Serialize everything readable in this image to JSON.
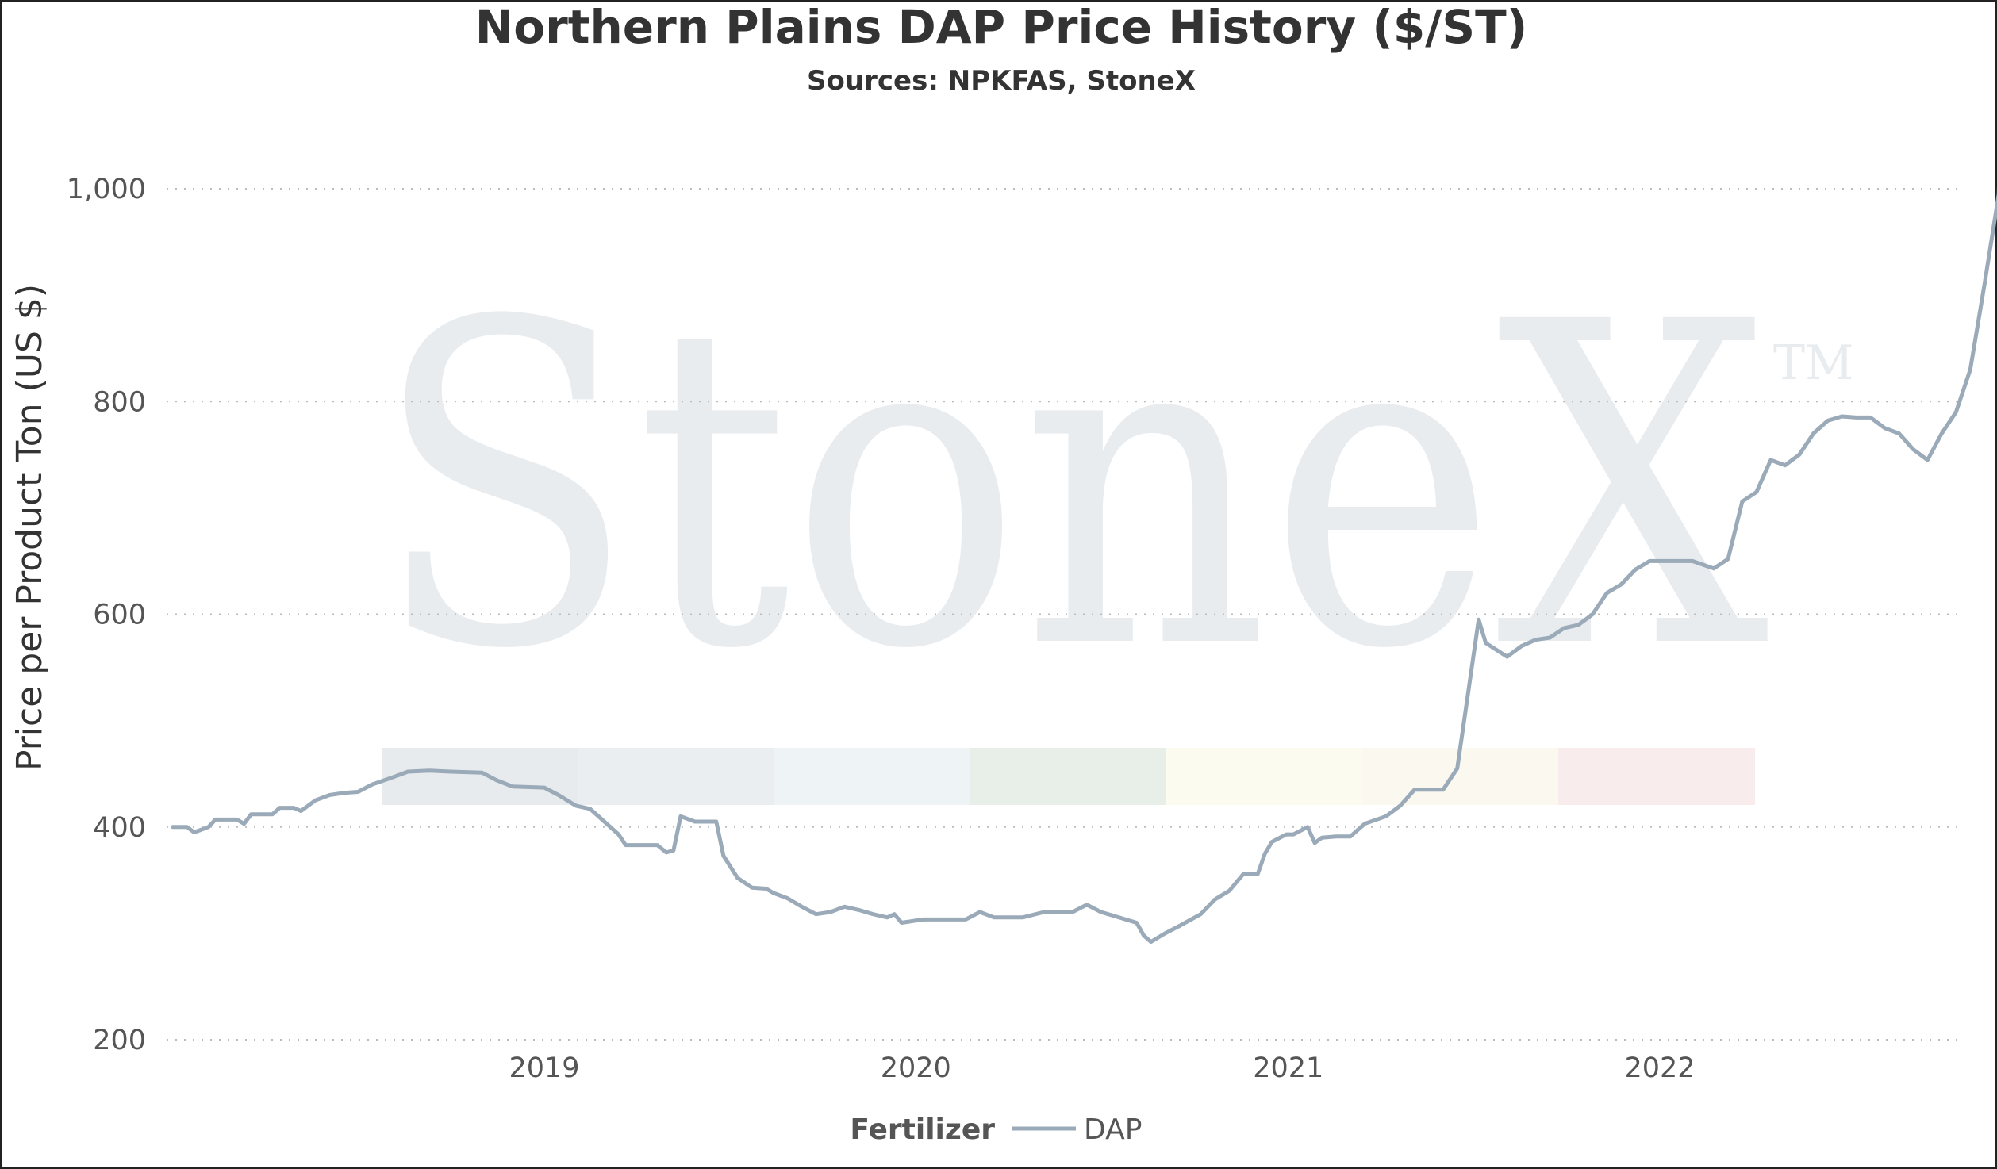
{
  "chart_data": {
    "type": "line",
    "title": "Northern Plains DAP Price History ($/ST)",
    "subtitle": "Sources: NPKFAS, StoneX",
    "ylabel": "Price per Product Ton (US $)",
    "xlabel": "",
    "ylim": [
      200,
      1000
    ],
    "y_ticks": [
      200,
      400,
      600,
      800,
      1000
    ],
    "y_tick_labels": [
      "200",
      "400",
      "600",
      "800",
      "1,000"
    ],
    "x_range": [
      "2018-01-01",
      "2022-12-01"
    ],
    "x_ticks": [
      "2019-01-01",
      "2020-01-01",
      "2021-01-01",
      "2022-01-01"
    ],
    "x_tick_labels": [
      "2019",
      "2020",
      "2021",
      "2022"
    ],
    "grid": "horizontal dotted",
    "legend": {
      "title": "Fertilizer",
      "position": "bottom"
    },
    "colors": {
      "line": "#9aaab8",
      "grid": "#bbbbbb",
      "watermark": "#e9ecef"
    },
    "watermark_text": "StoneX",
    "watermark_mark": "TM",
    "series": [
      {
        "name": "DAP",
        "color": "#9aaab8",
        "points": [
          [
            "2018-01-01",
            400
          ],
          [
            "2018-01-15",
            400
          ],
          [
            "2018-01-22",
            395
          ],
          [
            "2018-02-05",
            400
          ],
          [
            "2018-02-12",
            407
          ],
          [
            "2018-03-05",
            407
          ],
          [
            "2018-03-12",
            403
          ],
          [
            "2018-03-19",
            412
          ],
          [
            "2018-04-09",
            412
          ],
          [
            "2018-04-16",
            418
          ],
          [
            "2018-04-30",
            418
          ],
          [
            "2018-05-07",
            415
          ],
          [
            "2018-05-21",
            425
          ],
          [
            "2018-06-04",
            430
          ],
          [
            "2018-06-18",
            432
          ],
          [
            "2018-07-02",
            433
          ],
          [
            "2018-07-16",
            440
          ],
          [
            "2018-08-06",
            447
          ],
          [
            "2018-08-20",
            452
          ],
          [
            "2018-09-10",
            453
          ],
          [
            "2018-10-01",
            452
          ],
          [
            "2018-11-01",
            451
          ],
          [
            "2018-11-15",
            444
          ],
          [
            "2018-12-01",
            438
          ],
          [
            "2019-01-01",
            437
          ],
          [
            "2019-01-15",
            430
          ],
          [
            "2019-02-01",
            420
          ],
          [
            "2019-02-15",
            417
          ],
          [
            "2019-03-01",
            405
          ],
          [
            "2019-03-15",
            393
          ],
          [
            "2019-03-22",
            383
          ],
          [
            "2019-04-22",
            383
          ],
          [
            "2019-05-01",
            376
          ],
          [
            "2019-05-08",
            378
          ],
          [
            "2019-05-15",
            410
          ],
          [
            "2019-05-29",
            405
          ],
          [
            "2019-06-19",
            405
          ],
          [
            "2019-06-26",
            373
          ],
          [
            "2019-07-10",
            352
          ],
          [
            "2019-07-24",
            343
          ],
          [
            "2019-08-07",
            342
          ],
          [
            "2019-08-14",
            338
          ],
          [
            "2019-08-28",
            333
          ],
          [
            "2019-09-11",
            325
          ],
          [
            "2019-09-25",
            318
          ],
          [
            "2019-10-09",
            320
          ],
          [
            "2019-10-23",
            325
          ],
          [
            "2019-11-06",
            322
          ],
          [
            "2019-11-20",
            318
          ],
          [
            "2019-12-04",
            315
          ],
          [
            "2019-12-11",
            318
          ],
          [
            "2019-12-18",
            310
          ],
          [
            "2020-01-08",
            313
          ],
          [
            "2020-02-19",
            313
          ],
          [
            "2020-03-04",
            320
          ],
          [
            "2020-03-18",
            315
          ],
          [
            "2020-04-15",
            315
          ],
          [
            "2020-05-06",
            320
          ],
          [
            "2020-06-03",
            320
          ],
          [
            "2020-06-17",
            327
          ],
          [
            "2020-07-01",
            320
          ],
          [
            "2020-07-15",
            316
          ],
          [
            "2020-08-05",
            310
          ],
          [
            "2020-08-12",
            298
          ],
          [
            "2020-08-19",
            292
          ],
          [
            "2020-09-02",
            300
          ],
          [
            "2020-09-16",
            307
          ],
          [
            "2020-10-07",
            318
          ],
          [
            "2020-10-21",
            332
          ],
          [
            "2020-11-04",
            340
          ],
          [
            "2020-11-18",
            356
          ],
          [
            "2020-12-02",
            356
          ],
          [
            "2020-12-09",
            375
          ],
          [
            "2020-12-16",
            386
          ],
          [
            "2020-12-30",
            393
          ],
          [
            "2021-01-06",
            393
          ],
          [
            "2021-01-20",
            400
          ],
          [
            "2021-01-27",
            385
          ],
          [
            "2021-02-03",
            390
          ],
          [
            "2021-02-17",
            391
          ],
          [
            "2021-03-03",
            391
          ],
          [
            "2021-03-17",
            403
          ],
          [
            "2021-04-07",
            410
          ],
          [
            "2021-04-21",
            420
          ],
          [
            "2021-05-05",
            435
          ],
          [
            "2021-06-02",
            435
          ],
          [
            "2021-06-16",
            455
          ],
          [
            "2021-07-07",
            595
          ],
          [
            "2021-07-14",
            573
          ],
          [
            "2021-08-04",
            560
          ],
          [
            "2021-08-18",
            570
          ],
          [
            "2021-09-01",
            576
          ],
          [
            "2021-09-15",
            578
          ],
          [
            "2021-09-29",
            587
          ],
          [
            "2021-10-13",
            590
          ],
          [
            "2021-10-27",
            600
          ],
          [
            "2021-11-10",
            620
          ],
          [
            "2021-11-24",
            628
          ],
          [
            "2021-12-08",
            642
          ],
          [
            "2021-12-22",
            650
          ],
          [
            "2022-02-02",
            650
          ],
          [
            "2022-02-23",
            643
          ],
          [
            "2022-03-09",
            652
          ],
          [
            "2022-03-23",
            706
          ],
          [
            "2022-04-06",
            715
          ],
          [
            "2022-04-20",
            745
          ],
          [
            "2022-05-04",
            740
          ],
          [
            "2022-05-18",
            750
          ],
          [
            "2022-06-01",
            770
          ],
          [
            "2022-06-15",
            782
          ],
          [
            "2022-06-29",
            786
          ],
          [
            "2022-07-13",
            785
          ],
          [
            "2022-07-27",
            785
          ],
          [
            "2022-08-10",
            775
          ],
          [
            "2022-08-24",
            770
          ],
          [
            "2022-09-07",
            755
          ],
          [
            "2022-09-21",
            745
          ],
          [
            "2022-10-05",
            770
          ],
          [
            "2022-10-19",
            790
          ],
          [
            "2022-11-02",
            830
          ],
          [
            "2022-11-16",
            910
          ],
          [
            "2022-11-30",
            995
          ],
          [
            "2022-12-01",
            1027
          ]
        ]
      }
    ]
  }
}
